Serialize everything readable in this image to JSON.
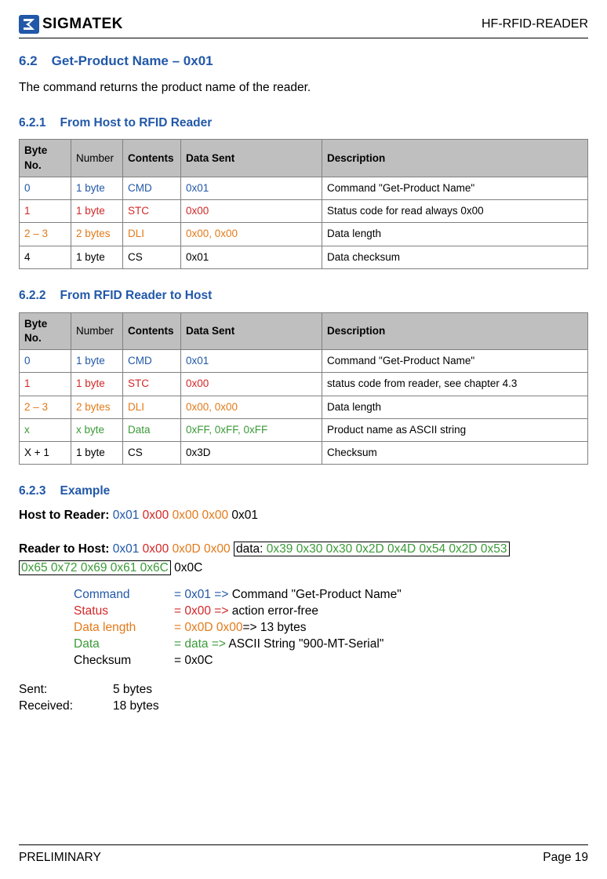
{
  "header": {
    "brand": "SIGMATEK",
    "right": "HF-RFID-READER"
  },
  "section": {
    "num": "6.2",
    "title": "Get-Product Name – 0x01",
    "desc": "The command returns the product name of the reader."
  },
  "sub1": {
    "num": "6.2.1",
    "title": "From Host to RFID Reader",
    "headers": [
      "Byte No.",
      "Number",
      "Contents",
      "Data Sent",
      "Description"
    ],
    "rows": [
      {
        "byte": "0",
        "num": "1 byte",
        "contents": "CMD",
        "data": "0x01",
        "desc": "Command \"Get-Product Name\"",
        "cls": "blue"
      },
      {
        "byte": "1",
        "num": "1 byte",
        "contents": "STC",
        "data": "0x00",
        "desc": "Status code for read always 0x00",
        "cls": "red"
      },
      {
        "byte": "2 – 3",
        "num": "2 bytes",
        "contents": "DLI",
        "data": "0x00, 0x00",
        "desc": "Data length",
        "cls": "orange"
      },
      {
        "byte": "4",
        "num": "1 byte",
        "contents": "CS",
        "data": "0x01",
        "desc": "Data checksum",
        "cls": ""
      }
    ]
  },
  "sub2": {
    "num": "6.2.2",
    "title": "From RFID Reader to Host",
    "headers": [
      "Byte No.",
      "Number",
      "Contents",
      "Data Sent",
      "Description"
    ],
    "rows": [
      {
        "byte": "0",
        "num": "1 byte",
        "contents": "CMD",
        "data": "0x01",
        "desc": "Command \"Get-Product Name\"",
        "cls": "blue"
      },
      {
        "byte": "1",
        "num": "1 byte",
        "contents": "STC",
        "data": "0x00",
        "desc": "status code from reader, see chapter 4.3",
        "cls": "red"
      },
      {
        "byte": "2 – 3",
        "num": "2 bytes",
        "contents": "DLI",
        "data": "0x00, 0x00",
        "desc": "Data length",
        "cls": "orange"
      },
      {
        "byte": "x",
        "num": "x byte",
        "contents": "Data",
        "data": "0xFF, 0xFF, 0xFF",
        "desc": "Product name as ASCII string",
        "cls": "green"
      },
      {
        "byte": "X + 1",
        "num": "1 byte",
        "contents": "CS",
        "data": "0x3D",
        "desc": "Checksum",
        "cls": ""
      }
    ]
  },
  "sub3": {
    "num": "6.2.3",
    "title": "Example",
    "hostToReader": {
      "label": "Host to Reader:",
      "parts": [
        {
          "t": "0x01",
          "cls": "blue"
        },
        {
          "t": "0x00",
          "cls": "red"
        },
        {
          "t": "0x00 0x00",
          "cls": "orange"
        },
        {
          "t": "0x01",
          "cls": ""
        }
      ]
    },
    "readerToHost": {
      "label": "Reader to Host:",
      "prefix": [
        {
          "t": "0x01",
          "cls": "blue"
        },
        {
          "t": "0x00",
          "cls": "red"
        },
        {
          "t": "0x0D 0x00",
          "cls": "orange"
        }
      ],
      "boxLabel": "data:",
      "boxLine1": "0x39 0x30 0x30 0x2D 0x4D 0x54 0x2D 0x53",
      "boxLine2": "0x65 0x72 0x69 0x61 0x6C",
      "suffix": "0x0C"
    },
    "kv": [
      {
        "k": "Command",
        "kcls": "blue",
        "v": "= 0x01 =>",
        "vcls": "blue",
        "rest": " Command \"Get-Product Name\""
      },
      {
        "k": "Status",
        "kcls": "red",
        "v": "= 0x00 =>",
        "vcls": "red",
        "rest": " action error-free"
      },
      {
        "k": "Data length",
        "kcls": "orange",
        "v": "=    0x0D 0x00",
        "vcls": "orange",
        "rest": "=> 13 bytes"
      },
      {
        "k": "Data",
        "kcls": "green",
        "v": "= data =>",
        "vcls": "green",
        "rest": " ASCII String \"900-MT-Serial\""
      },
      {
        "k": "Checksum",
        "kcls": "",
        "v": "= 0x0C",
        "vcls": "",
        "rest": ""
      }
    ],
    "bytes": [
      {
        "k": "Sent:",
        "v": "5 bytes"
      },
      {
        "k": "Received:",
        "v": "18 bytes"
      }
    ]
  },
  "footer": {
    "left": "PRELIMINARY",
    "right": "Page 19"
  }
}
